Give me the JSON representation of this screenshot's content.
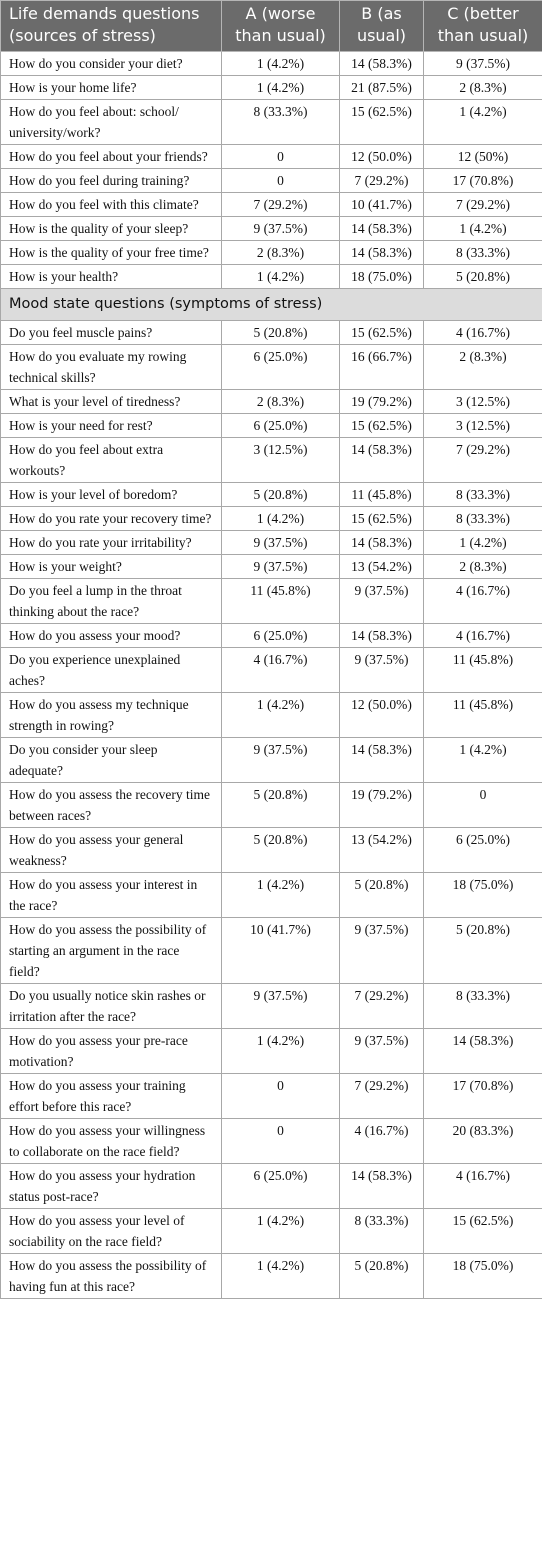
{
  "table": {
    "header": [
      "Life demands questions (sources of stress)",
      "A (worse than usual)",
      "B (as usual)",
      "C (better than usual)"
    ],
    "sections": [
      {
        "rows": [
          [
            "How do you consider your diet?",
            "1 (4.2%)",
            "14 (58.3%)",
            "9 (37.5%)"
          ],
          [
            "How is your home life?",
            "1 (4.2%)",
            "21 (87.5%)",
            "2 (8.3%)"
          ],
          [
            "How do you feel about: school/ university/work?",
            "8 (33.3%)",
            "15 (62.5%)",
            "1 (4.2%)"
          ],
          [
            "How do you feel about your friends?",
            "0",
            "12 (50.0%)",
            "12 (50%)"
          ],
          [
            "How do you feel during training?",
            "0",
            "7 (29.2%)",
            "17 (70.8%)"
          ],
          [
            "How do you feel with this climate?",
            "7 (29.2%)",
            "10 (41.7%)",
            "7 (29.2%)"
          ],
          [
            "How is the quality of your sleep?",
            "9 (37.5%)",
            "14 (58.3%)",
            "1 (4.2%)"
          ],
          [
            "How is the quality of your free time?",
            "2 (8.3%)",
            "14 (58.3%)",
            "8 (33.3%)"
          ],
          [
            "How is your health?",
            "1 (4.2%)",
            "18 (75.0%)",
            "5 (20.8%)"
          ]
        ]
      },
      {
        "title": "Mood state questions (symptoms of stress)",
        "rows": [
          [
            "Do you feel muscle pains?",
            "5 (20.8%)",
            "15 (62.5%)",
            "4 (16.7%)"
          ],
          [
            "How do you evaluate my rowing technical skills?",
            "6 (25.0%)",
            "16 (66.7%)",
            "2 (8.3%)"
          ],
          [
            "What is your level of tiredness?",
            "2 (8.3%)",
            "19 (79.2%)",
            "3 (12.5%)"
          ],
          [
            "How is your need for rest?",
            "6 (25.0%)",
            "15 (62.5%)",
            "3 (12.5%)"
          ],
          [
            "How do you feel about extra workouts?",
            "3 (12.5%)",
            "14 (58.3%)",
            "7 (29.2%)"
          ],
          [
            "How is your level of boredom?",
            "5 (20.8%)",
            "11 (45.8%)",
            "8 (33.3%)"
          ],
          [
            "How do you rate your recovery time?",
            "1 (4.2%)",
            "15 (62.5%)",
            "8 (33.3%)"
          ],
          [
            "How do you rate your irritability?",
            "9 (37.5%)",
            "14 (58.3%)",
            "1 (4.2%)"
          ],
          [
            "How is your weight?",
            "9 (37.5%)",
            "13 (54.2%)",
            "2 (8.3%)"
          ],
          [
            "Do you feel a lump in the throat thinking about the race?",
            "11 (45.8%)",
            "9 (37.5%)",
            "4 (16.7%)"
          ],
          [
            "How do you assess your mood?",
            "6 (25.0%)",
            "14 (58.3%)",
            "4 (16.7%)"
          ],
          [
            "Do you experience unexplained aches?",
            "4 (16.7%)",
            "9 (37.5%)",
            "11 (45.8%)"
          ],
          [
            "How do you assess my technique strength in rowing?",
            "1 (4.2%)",
            "12 (50.0%)",
            "11 (45.8%)"
          ],
          [
            "Do you consider your sleep adequate?",
            "9 (37.5%)",
            "14 (58.3%)",
            "1 (4.2%)"
          ],
          [
            "How do you assess the recovery time between races?",
            "5 (20.8%)",
            "19 (79.2%)",
            "0"
          ],
          [
            "How do you assess your general weakness?",
            "5 (20.8%)",
            "13 (54.2%)",
            "6 (25.0%)"
          ],
          [
            "How do you assess your interest in the race?",
            "1 (4.2%)",
            "5 (20.8%)",
            "18 (75.0%)"
          ],
          [
            "How do you assess the possibility of starting an argument in the race field?",
            "10 (41.7%)",
            "9 (37.5%)",
            "5 (20.8%)"
          ],
          [
            "Do you usually notice skin rashes or irritation after the race?",
            "9 (37.5%)",
            "7 (29.2%)",
            "8 (33.3%)"
          ],
          [
            "How do you assess your pre-race motivation?",
            "1 (4.2%)",
            "9 (37.5%)",
            "14 (58.3%)"
          ],
          [
            "How do you assess your training effort before this race?",
            "0",
            "7 (29.2%)",
            "17 (70.8%)"
          ],
          [
            "How do you assess your willingness to collaborate on the race field?",
            "0",
            "4 (16.7%)",
            "20 (83.3%)"
          ],
          [
            "How do you assess your hydration status post-race?",
            "6 (25.0%)",
            "14 (58.3%)",
            "4 (16.7%)"
          ],
          [
            "How do you assess your level of sociability on the race field?",
            "1 (4.2%)",
            "8 (33.3%)",
            "15 (62.5%)"
          ],
          [
            "How do you assess the possibility of having fun at this race?",
            "1 (4.2%)",
            "5 (20.8%)",
            "18 (75.0%)"
          ]
        ]
      }
    ]
  }
}
